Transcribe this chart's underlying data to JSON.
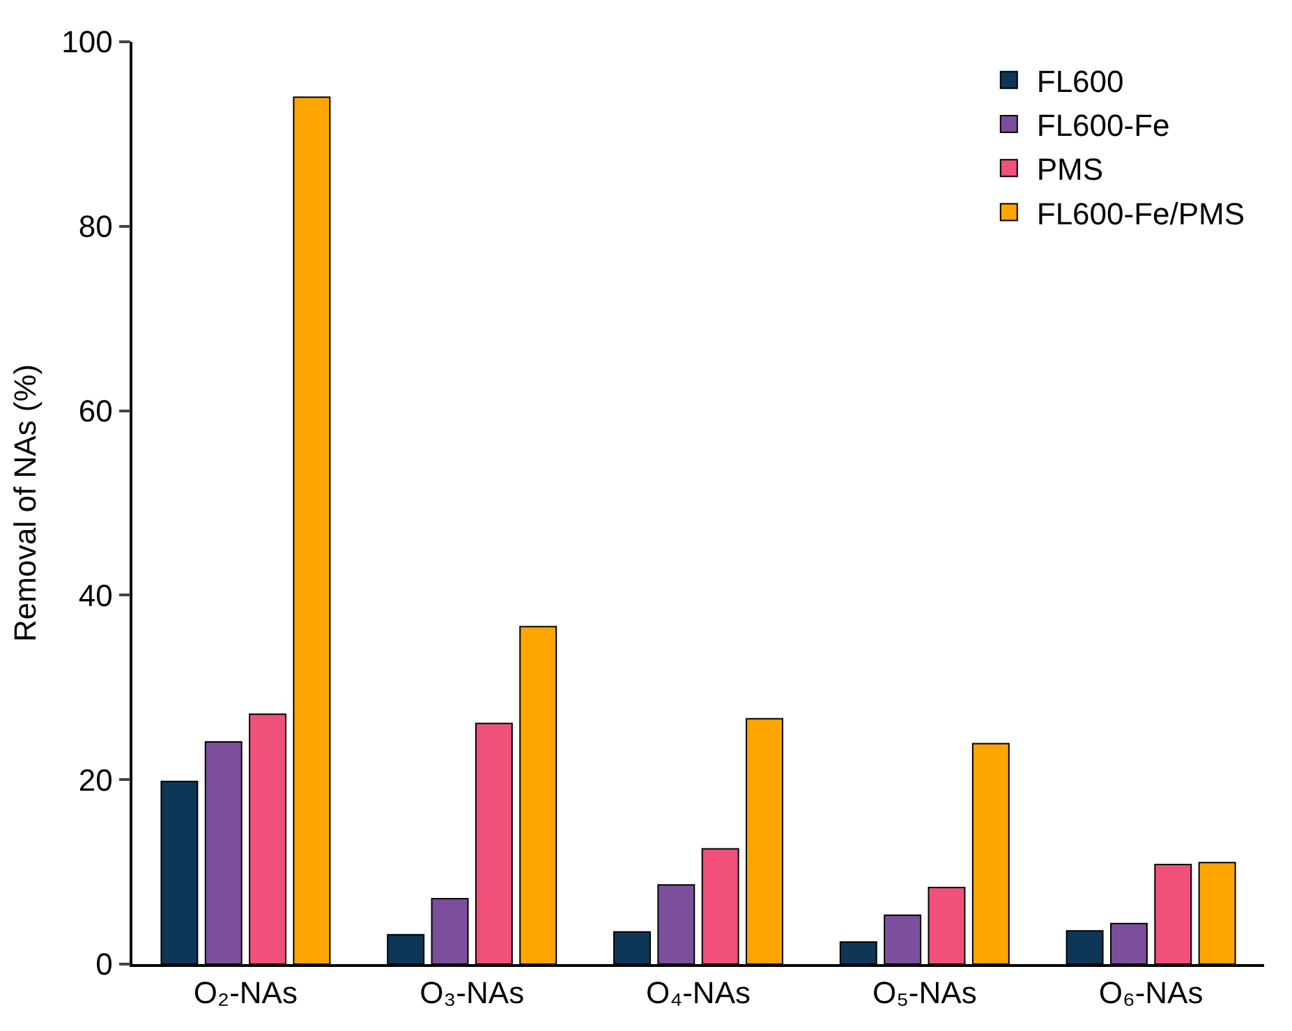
{
  "chart_data": {
    "type": "bar",
    "ylabel": "Removal of NAs (%)",
    "categories": [
      "O₂-NAs",
      "O₃-NAs",
      "O₄-NAs",
      "O₅-NAs",
      "O₆-NAs"
    ],
    "series": [
      {
        "name": "FL600",
        "color": "#0d3657",
        "values": [
          19.8,
          3.2,
          3.5,
          2.4,
          3.6
        ]
      },
      {
        "name": "FL600-Fe",
        "color": "#7b4f9c",
        "values": [
          24.1,
          7.1,
          8.6,
          5.3,
          4.4
        ]
      },
      {
        "name": "PMS",
        "color": "#f0507a",
        "values": [
          27.1,
          26.1,
          12.5,
          8.3,
          10.8
        ]
      },
      {
        "name": "FL600-Fe/PMS",
        "color": "#ffa500",
        "values": [
          94.0,
          36.6,
          26.6,
          23.9,
          11.0
        ]
      }
    ],
    "ylim": [
      0,
      100
    ],
    "yticks": [
      0,
      20,
      40,
      60,
      80,
      100
    ],
    "grid": false,
    "legend": "top right"
  }
}
